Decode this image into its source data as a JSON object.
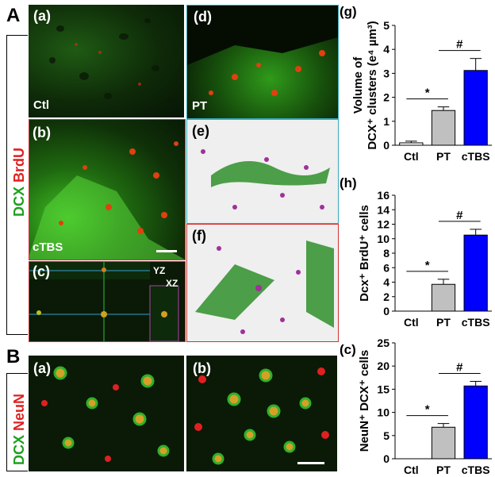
{
  "section_a": {
    "letter": "A",
    "stain_dcx": "DCX",
    "stain_brdu": "BrdU"
  },
  "section_b": {
    "letter": "B",
    "stain_dcx": "DCX",
    "stain_neun": "NeuN"
  },
  "panels": {
    "a": {
      "label": "(a)",
      "caption": "Ctl"
    },
    "b": {
      "label": "(b)",
      "caption": "cTBS"
    },
    "c": {
      "label": "(c)",
      "yz": "YZ",
      "xz": "XZ"
    },
    "d": {
      "label": "(d)",
      "caption": "PT"
    },
    "e": {
      "label": "(e)"
    },
    "f": {
      "label": "(f)"
    },
    "ba": {
      "label": "(a)"
    },
    "bb": {
      "label": "(b)"
    }
  },
  "colors": {
    "ctl": "#ffffff",
    "pt": "#c0c0c0",
    "ctbs": "#0000ff",
    "dcx": "#22b022",
    "brdu": "#e82020",
    "neun": "#e82020"
  },
  "chart_data": [
    {
      "type": "bar",
      "panel_label": "(g)",
      "ylabel_line1": "Volume of",
      "ylabel_line2": "DCX⁺ clusters (e⁴ µm³)",
      "categories": [
        "Ctl",
        "PT",
        "cTBS"
      ],
      "values": [
        0.1,
        1.45,
        3.12
      ],
      "errors": [
        0.07,
        0.15,
        0.5
      ],
      "ylim": [
        0,
        5
      ],
      "yticks": [
        "0",
        "1",
        "2",
        "3",
        "4",
        "5"
      ],
      "annotations": [
        {
          "text": "*",
          "between": [
            "Ctl",
            "PT"
          ]
        },
        {
          "text": "#",
          "between": [
            "PT",
            "cTBS"
          ]
        }
      ]
    },
    {
      "type": "bar",
      "panel_label": "(h)",
      "ylabel_line1": "Dcx⁺ BrdU⁺ cells",
      "categories": [
        "Ctl",
        "PT",
        "cTBS"
      ],
      "values": [
        0,
        3.7,
        10.5
      ],
      "errors": [
        0,
        0.7,
        0.8
      ],
      "ylim": [
        0,
        16
      ],
      "yticks": [
        "0",
        "2",
        "4",
        "6",
        "8",
        "10",
        "12",
        "14",
        "16"
      ],
      "annotations": [
        {
          "text": "*",
          "between": [
            "Ctl",
            "PT"
          ]
        },
        {
          "text": "#",
          "between": [
            "PT",
            "cTBS"
          ]
        }
      ]
    },
    {
      "type": "bar",
      "panel_label": "(c)",
      "ylabel_line1": "NeuN⁺ DCX⁺ cells",
      "categories": [
        "Ctl",
        "PT",
        "cTBS"
      ],
      "values": [
        0,
        6.8,
        15.7
      ],
      "errors": [
        0,
        0.8,
        1.0
      ],
      "ylim": [
        0,
        25
      ],
      "yticks": [
        "0",
        "5",
        "10",
        "15",
        "20",
        "25"
      ],
      "annotations": [
        {
          "text": "*",
          "between": [
            "Ctl",
            "PT"
          ]
        },
        {
          "text": "#",
          "between": [
            "PT",
            "cTBS"
          ]
        }
      ]
    }
  ]
}
